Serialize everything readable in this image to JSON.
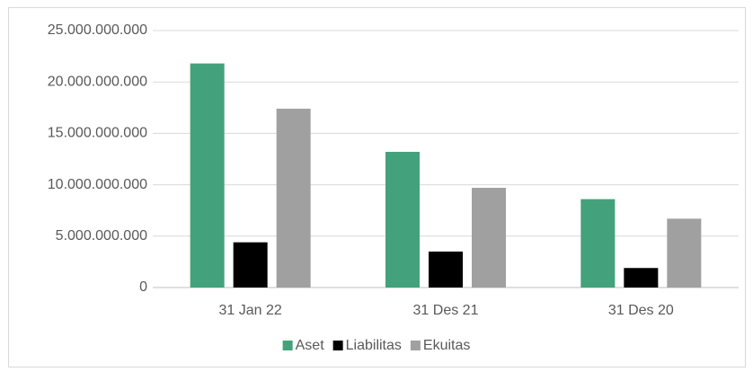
{
  "chart_data": {
    "type": "bar",
    "categories": [
      "31 Jan 22",
      "31 Des 21",
      "31 Des 20"
    ],
    "series": [
      {
        "name": "Aset",
        "color": "#43a27b",
        "values": [
          21800000000,
          13200000000,
          8600000000
        ]
      },
      {
        "name": "Liabilitas",
        "color": "#000000",
        "values": [
          4400000000,
          3500000000,
          1900000000
        ]
      },
      {
        "name": "Ekuitas",
        "color": "#a0a0a0",
        "values": [
          17400000000,
          9700000000,
          6700000000
        ]
      }
    ],
    "ylim": [
      0,
      25000000000
    ],
    "yticks": [
      0,
      {
        "value": 5000000000,
        "label": "5.000.000.000"
      },
      {
        "value": 10000000000,
        "label": "10.000.000.000"
      },
      {
        "value": 15000000000,
        "label": "15.000.000.000"
      },
      {
        "value": 20000000000,
        "label": "20.000.000.000"
      },
      {
        "value": 25000000000,
        "label": "25.000.000.000"
      }
    ],
    "grid": true,
    "legend": "bottom"
  }
}
